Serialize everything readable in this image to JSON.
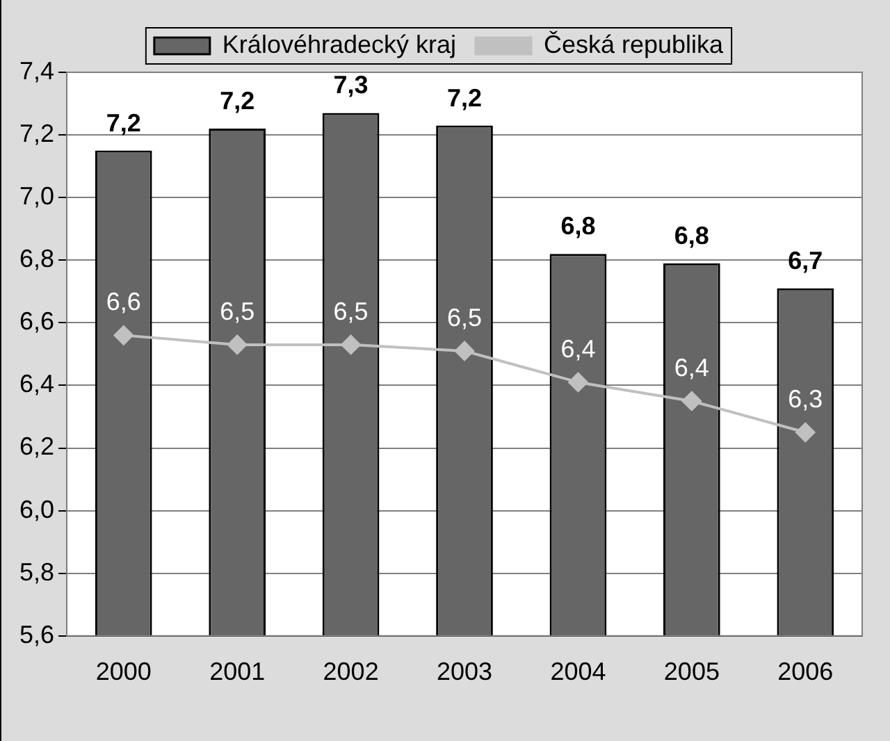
{
  "chart_data": {
    "type": "bar",
    "categories": [
      "2000",
      "2001",
      "2002",
      "2003",
      "2004",
      "2005",
      "2006"
    ],
    "series": [
      {
        "name": "Královéhradecký kraj",
        "color": "#666666",
        "values": [
          7.15,
          7.22,
          7.27,
          7.23,
          6.82,
          6.79,
          6.71
        ],
        "value_labels": [
          "7,2",
          "7,2",
          "7,3",
          "7,2",
          "6,8",
          "6,8",
          "6,7"
        ]
      },
      {
        "name": "Česká republika",
        "type": "line",
        "color": "#c0c0c0",
        "marker": "diamond",
        "values": [
          6.56,
          6.53,
          6.53,
          6.51,
          6.41,
          6.35,
          6.25
        ],
        "value_labels": [
          "6,6",
          "6,5",
          "6,5",
          "6,5",
          "6,4",
          "6,4",
          "6,3"
        ]
      }
    ],
    "ylim": [
      5.6,
      7.4
    ],
    "yticks": [
      {
        "value": 5.6,
        "label": "5,6"
      },
      {
        "value": 5.8,
        "label": "5,8"
      },
      {
        "value": 6.0,
        "label": "6,0"
      },
      {
        "value": 6.2,
        "label": "6,2"
      },
      {
        "value": 6.4,
        "label": "6,4"
      },
      {
        "value": 6.6,
        "label": "6,6"
      },
      {
        "value": 6.8,
        "label": "6,8"
      },
      {
        "value": 7.0,
        "label": "7,0"
      },
      {
        "value": 7.2,
        "label": "7,2"
      },
      {
        "value": 7.4,
        "label": "7,4"
      }
    ],
    "grid": "y",
    "legend": "top"
  }
}
